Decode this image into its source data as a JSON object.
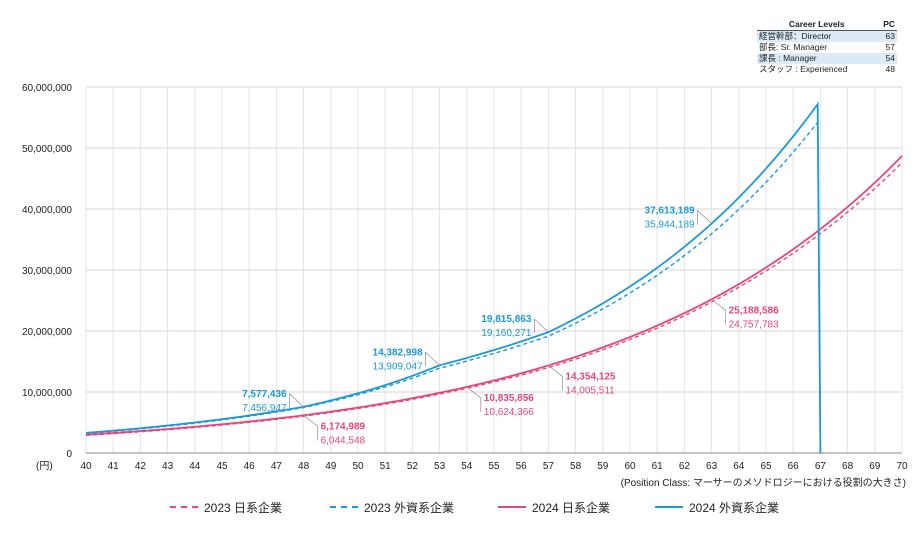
{
  "chart_data": {
    "type": "line",
    "unit_label": "(円)",
    "x_axis_note": "(Position Class: マーサーのメソドロジーにおける役割の大きさ)",
    "ylim": [
      0,
      60000000
    ],
    "xlim": [
      40,
      70
    ],
    "y_ticks": [
      "0",
      "10,000,000",
      "20,000,000",
      "30,000,000",
      "40,000,000",
      "50,000,000",
      "60,000,000"
    ],
    "x_ticks": [
      "40",
      "41",
      "42",
      "43",
      "44",
      "45",
      "46",
      "47",
      "48",
      "49",
      "50",
      "51",
      "52",
      "53",
      "54",
      "55",
      "56",
      "57",
      "58",
      "59",
      "60",
      "61",
      "62",
      "63",
      "64",
      "65",
      "66",
      "67",
      "68",
      "69",
      "70"
    ],
    "series": [
      {
        "name": "2023 日系企業",
        "color": "#e8457f",
        "dashed": true,
        "start": [
          40,
          2900000
        ],
        "knots": [
          [
            48,
            6044548
          ],
          [
            54,
            10624366
          ],
          [
            57,
            14005511
          ],
          [
            63,
            24757783
          ],
          [
            70,
            47600000
          ]
        ]
      },
      {
        "name": "2023 外資系企業",
        "color": "#1c9ad6",
        "dashed": true,
        "start": [
          40,
          3200000
        ],
        "knots": [
          [
            48,
            7456947
          ],
          [
            53,
            13909047
          ],
          [
            57,
            19160271
          ],
          [
            63,
            35944189
          ],
          [
            67,
            54800000
          ]
        ]
      },
      {
        "name": "2024 日系企業",
        "color": "#e8457f",
        "dashed": false,
        "start": [
          40,
          3000000
        ],
        "knots": [
          [
            48,
            6174989
          ],
          [
            54,
            10835856
          ],
          [
            57,
            14354125
          ],
          [
            63,
            25188586
          ],
          [
            70,
            48700000
          ]
        ]
      },
      {
        "name": "2024 外資系企業",
        "color": "#1c9ad6",
        "dashed": false,
        "start": [
          40,
          3300000
        ],
        "knots": [
          [
            48,
            7577436
          ],
          [
            53,
            14382998
          ],
          [
            57,
            19815863
          ],
          [
            63,
            37613189
          ],
          [
            67,
            57800000
          ]
        ]
      }
    ],
    "annotations": [
      {
        "bold": "7,577,436",
        "normal": "7,456,947",
        "color": "#1c9ad6",
        "pc": 48,
        "side": "left"
      },
      {
        "bold": "14,382,998",
        "normal": "13,909,047",
        "color": "#1c9ad6",
        "pc": 53,
        "side": "left"
      },
      {
        "bold": "19,815,863",
        "normal": "19,160,271",
        "color": "#1c9ad6",
        "pc": 57,
        "side": "left"
      },
      {
        "bold": "37,613,189",
        "normal": "35,944,189",
        "color": "#1c9ad6",
        "pc": 63,
        "side": "left"
      },
      {
        "bold": "6,174,989",
        "normal": "6,044,548",
        "color": "#e8457f",
        "pc": 48,
        "side": "right"
      },
      {
        "bold": "10,835,856",
        "normal": "10,624,366",
        "color": "#e8457f",
        "pc": 54,
        "side": "right"
      },
      {
        "bold": "14,354,125",
        "normal": "14,005,511",
        "color": "#e8457f",
        "pc": 57,
        "side": "right"
      },
      {
        "bold": "25,188,586",
        "normal": "24,757,783",
        "color": "#e8457f",
        "pc": 63,
        "side": "right"
      }
    ]
  },
  "career_table": {
    "header": {
      "level": "Career Levels",
      "pc": "PC"
    },
    "rows": [
      {
        "level": "経営幹部：Director",
        "pc": "63"
      },
      {
        "level": "部長: Sr. Manager",
        "pc": "57"
      },
      {
        "level": "課長 : Manager",
        "pc": "54"
      },
      {
        "level": "スタッフ : Experienced",
        "pc": "48"
      }
    ]
  },
  "legend": [
    {
      "label": "2023 日系企業",
      "color": "#e8457f",
      "dashed": true
    },
    {
      "label": "2023 外資系企業",
      "color": "#1c9ad6",
      "dashed": true
    },
    {
      "label": "2024 日系企業",
      "color": "#e8457f",
      "dashed": false
    },
    {
      "label": "2024 外資系企業",
      "color": "#1c9ad6",
      "dashed": false
    }
  ]
}
